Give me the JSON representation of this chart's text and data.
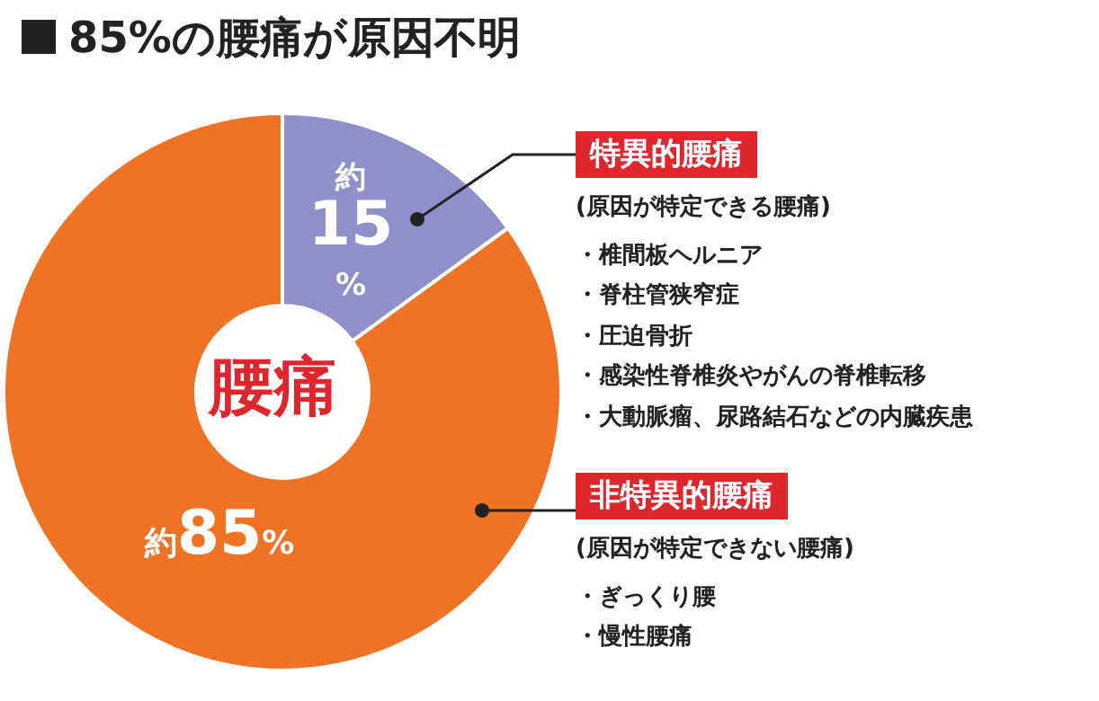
{
  "chart_data": {
    "type": "donut",
    "title": "85%の腰痛が原因不明",
    "categories": [
      "特異的腰痛",
      "非特異的腰痛"
    ],
    "values": [
      15,
      85
    ],
    "colors": [
      "#8e8fcb",
      "#f07224"
    ],
    "value_labels": [
      "約15%",
      "約85%"
    ],
    "annotations": [
      "腰痛",
      "(原因が特定できる腰痛)",
      "・椎間板ヘルニア",
      "・脊柱管狭窄症",
      "・圧迫骨折",
      "・感染性脊椎炎やがんの脊椎転移",
      "・大動脈瘤、尿路結石などの内臓疾患",
      "(原因が特定できない腰痛)",
      "・ぎっくり腰",
      "・慢性腰痛"
    ]
  }
}
